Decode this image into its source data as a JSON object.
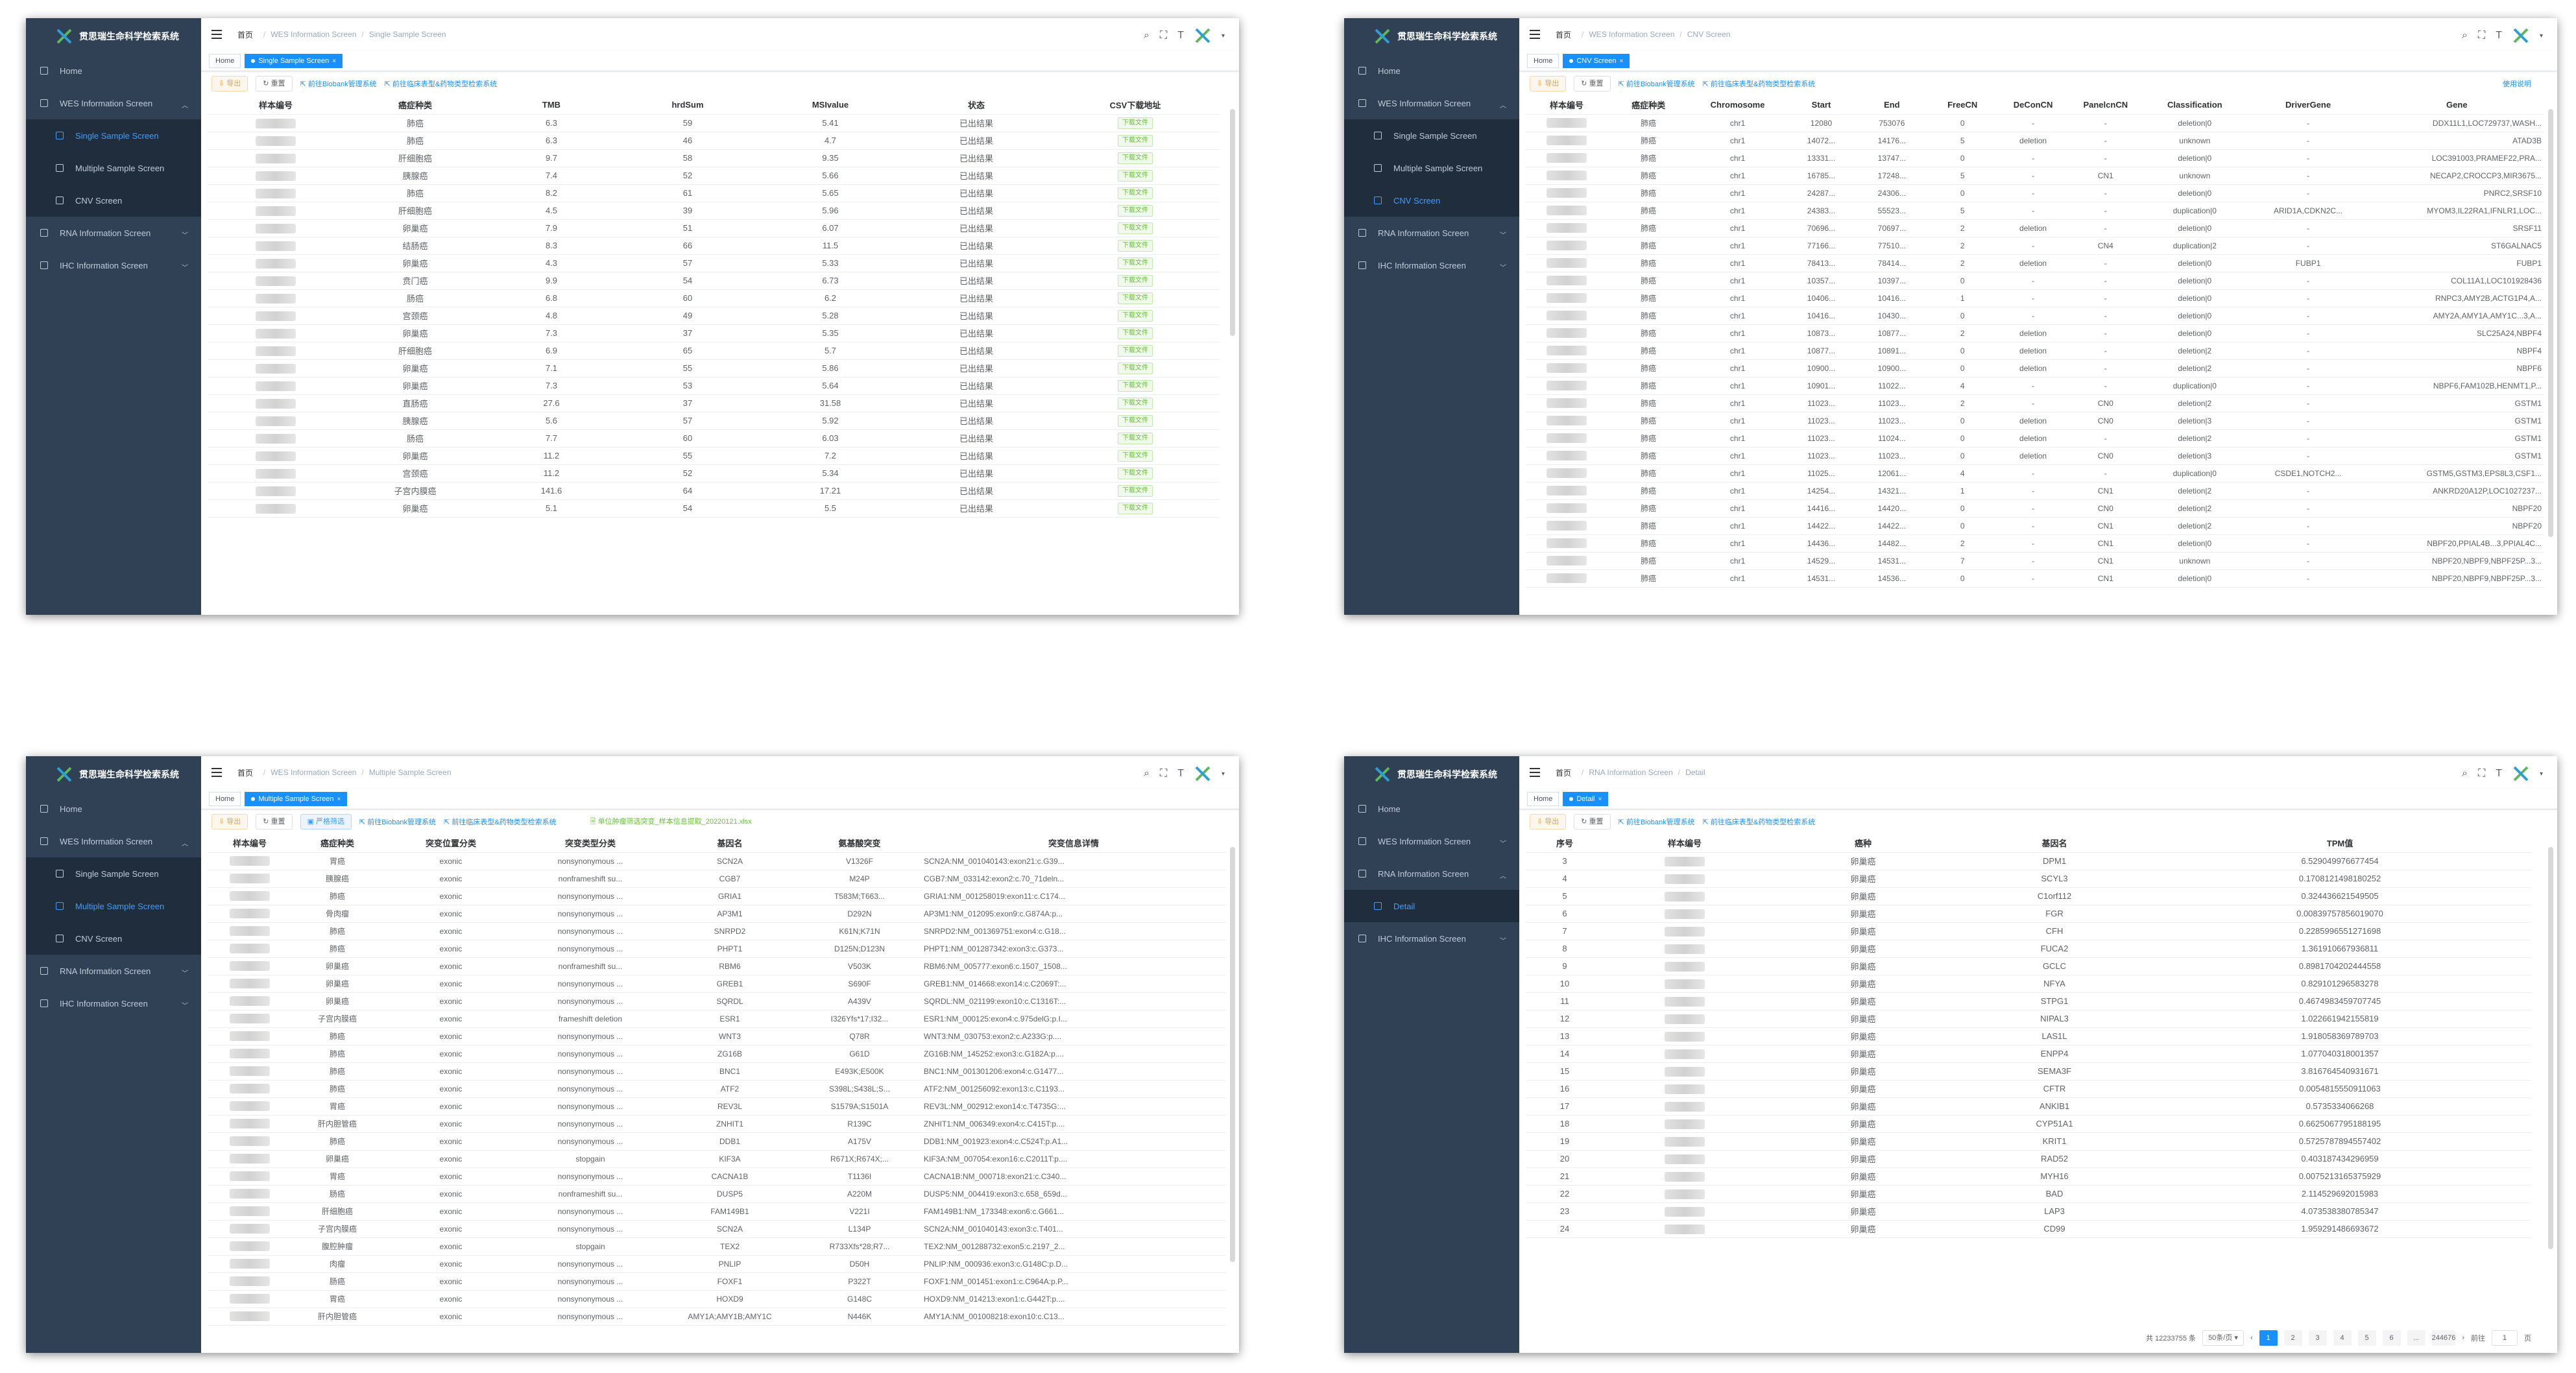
{
  "app_title": "贯思瑞生命科学检索系统",
  "menu": {
    "home": "Home",
    "wes": "WES Information Screen",
    "single": "Single Sample Screen",
    "multiple": "Multiple Sample Screen",
    "cnv": "CNV Screen",
    "rna": "RNA Information Screen",
    "detail": "Detail",
    "ihc": "IHC Information Screen"
  },
  "home_bc": "首页",
  "home_tag": "Home",
  "actions": {
    "export": "导出",
    "reset": "重置",
    "filter": "严格筛选",
    "biobank": "前往Biobank管理系统",
    "clinical": "前往临床表型&药物类型检索系统",
    "info": "使用说明",
    "xlsx": "单位肿瘤筛选突变_样本信息提取_20220121.xlsx"
  },
  "colors": {
    "sidebar": "#304156",
    "active": "#409eff",
    "tag": "#1890ff"
  },
  "w1": {
    "bc": [
      "WES Information Screen",
      "Single Sample Screen"
    ],
    "tag": "Single Sample Screen",
    "headers": [
      "样本编号",
      "癌症种类",
      "TMB",
      "hrdSum",
      "MSIvalue",
      "状态",
      "CSV下载地址"
    ],
    "dl": "下载文件",
    "rows": [
      [
        "肺癌",
        "6.3",
        "59",
        "5.41",
        "已出结果"
      ],
      [
        "肺癌",
        "6.3",
        "46",
        "4.7",
        "已出结果"
      ],
      [
        "肝细胞癌",
        "9.7",
        "58",
        "9.35",
        "已出结果"
      ],
      [
        "胰腺癌",
        "7.4",
        "52",
        "5.66",
        "已出结果"
      ],
      [
        "肺癌",
        "8.2",
        "61",
        "5.65",
        "已出结果"
      ],
      [
        "肝细胞癌",
        "4.5",
        "39",
        "5.96",
        "已出结果"
      ],
      [
        "卵巢癌",
        "7.9",
        "51",
        "6.07",
        "已出结果"
      ],
      [
        "结肠癌",
        "8.3",
        "66",
        "11.5",
        "已出结果"
      ],
      [
        "卵巢癌",
        "4.3",
        "57",
        "5.33",
        "已出结果"
      ],
      [
        "贲门癌",
        "9.9",
        "54",
        "6.73",
        "已出结果"
      ],
      [
        "肠癌",
        "6.8",
        "60",
        "6.2",
        "已出结果"
      ],
      [
        "宫颈癌",
        "4.8",
        "49",
        "5.28",
        "已出结果"
      ],
      [
        "卵巢癌",
        "7.3",
        "37",
        "5.35",
        "已出结果"
      ],
      [
        "肝细胞癌",
        "6.9",
        "65",
        "5.7",
        "已出结果"
      ],
      [
        "卵巢癌",
        "7.1",
        "55",
        "5.86",
        "已出结果"
      ],
      [
        "卵巢癌",
        "7.3",
        "53",
        "5.64",
        "已出结果"
      ],
      [
        "直肠癌",
        "27.6",
        "37",
        "31.58",
        "已出结果"
      ],
      [
        "胰腺癌",
        "5.6",
        "57",
        "5.92",
        "已出结果"
      ],
      [
        "肠癌",
        "7.7",
        "60",
        "6.03",
        "已出结果"
      ],
      [
        "卵巢癌",
        "11.2",
        "55",
        "7.2",
        "已出结果"
      ],
      [
        "宫颈癌",
        "11.2",
        "52",
        "5.34",
        "已出结果"
      ],
      [
        "子宫内膜癌",
        "141.6",
        "64",
        "17.21",
        "已出结果"
      ],
      [
        "卵巢癌",
        "5.1",
        "54",
        "5.5",
        "已出结果"
      ]
    ]
  },
  "w2": {
    "bc": [
      "WES Information Screen",
      "CNV Screen"
    ],
    "tag": "CNV Screen",
    "headers": [
      "样本编号",
      "癌症种类",
      "Chromosome",
      "Start",
      "End",
      "FreeCN",
      "DeConCN",
      "PanelcnCN",
      "Classification",
      "DriverGene",
      "Gene"
    ],
    "rows": [
      [
        "肺癌",
        "chr1",
        "12080",
        "753076",
        "0",
        "-",
        "-",
        "deletion|0",
        "-",
        "DDX11L1,LOC729737,WASH..."
      ],
      [
        "肺癌",
        "chr1",
        "14072...",
        "14176...",
        "5",
        "deletion",
        "-",
        "unknown",
        "-",
        "ATAD3B"
      ],
      [
        "肺癌",
        "chr1",
        "13331...",
        "13747...",
        "0",
        "-",
        "-",
        "deletion|0",
        "-",
        "LOC391003,PRAMEF22,PRA..."
      ],
      [
        "肺癌",
        "chr1",
        "16785...",
        "17248...",
        "5",
        "-",
        "CN1",
        "unknown",
        "-",
        "NECAP2,CROCCP3,MIR3675..."
      ],
      [
        "肺癌",
        "chr1",
        "24287...",
        "24306...",
        "0",
        "-",
        "-",
        "deletion|0",
        "-",
        "PNRC2,SRSF10"
      ],
      [
        "肺癌",
        "chr1",
        "24383...",
        "55523...",
        "5",
        "-",
        "-",
        "duplication|0",
        "ARID1A,CDKN2C...",
        "MYOM3,IL22RA1,IFNLR1,LOC..."
      ],
      [
        "肺癌",
        "chr1",
        "70696...",
        "70697...",
        "2",
        "deletion",
        "-",
        "deletion|0",
        "-",
        "SRSF11"
      ],
      [
        "肺癌",
        "chr1",
        "77166...",
        "77510...",
        "2",
        "-",
        "CN4",
        "duplication|2",
        "-",
        "ST6GALNAC5"
      ],
      [
        "肺癌",
        "chr1",
        "78413...",
        "78414...",
        "2",
        "deletion",
        "-",
        "deletion|0",
        "FUBP1",
        "FUBP1"
      ],
      [
        "肺癌",
        "chr1",
        "10357...",
        "10397...",
        "0",
        "-",
        "-",
        "deletion|0",
        "-",
        "COL11A1,LOC101928436"
      ],
      [
        "肺癌",
        "chr1",
        "10406...",
        "10416...",
        "1",
        "-",
        "-",
        "deletion|0",
        "-",
        "RNPC3,AMY2B,ACTG1P4,A..."
      ],
      [
        "肺癌",
        "chr1",
        "10416...",
        "10430...",
        "0",
        "-",
        "-",
        "deletion|0",
        "-",
        "AMY2A,AMY1A,AMY1C...3,A..."
      ],
      [
        "肺癌",
        "chr1",
        "10873...",
        "10877...",
        "2",
        "deletion",
        "-",
        "deletion|0",
        "-",
        "SLC25A24,NBPF4"
      ],
      [
        "肺癌",
        "chr1",
        "10877...",
        "10891...",
        "0",
        "deletion",
        "-",
        "deletion|2",
        "-",
        "NBPF4"
      ],
      [
        "肺癌",
        "chr1",
        "10900...",
        "10900...",
        "0",
        "deletion",
        "-",
        "deletion|2",
        "-",
        "NBPF6"
      ],
      [
        "肺癌",
        "chr1",
        "10901...",
        "11022...",
        "4",
        "-",
        "-",
        "duplication|0",
        "-",
        "NBPF6,FAM102B,HENMT1,P..."
      ],
      [
        "肺癌",
        "chr1",
        "11023...",
        "11023...",
        "2",
        "-",
        "CN0",
        "deletion|2",
        "-",
        "GSTM1"
      ],
      [
        "肺癌",
        "chr1",
        "11023...",
        "11023...",
        "0",
        "deletion",
        "CN0",
        "deletion|3",
        "-",
        "GSTM1"
      ],
      [
        "肺癌",
        "chr1",
        "11023...",
        "11024...",
        "0",
        "deletion",
        "-",
        "deletion|2",
        "-",
        "GSTM1"
      ],
      [
        "肺癌",
        "chr1",
        "11023...",
        "11023...",
        "0",
        "deletion",
        "CN0",
        "deletion|3",
        "-",
        "GSTM1"
      ],
      [
        "肺癌",
        "chr1",
        "11025...",
        "12061...",
        "4",
        "-",
        "-",
        "duplication|0",
        "CSDE1,NOTCH2...",
        "GSTM5,GSTM3,EPS8L3,CSF1..."
      ],
      [
        "肺癌",
        "chr1",
        "14254...",
        "14321...",
        "1",
        "-",
        "CN1",
        "deletion|2",
        "-",
        "ANKRD20A12P,LOC1027237..."
      ],
      [
        "肺癌",
        "chr1",
        "14416...",
        "14420...",
        "0",
        "-",
        "CN0",
        "deletion|2",
        "-",
        "NBPF20"
      ],
      [
        "肺癌",
        "chr1",
        "14422...",
        "14422...",
        "0",
        "-",
        "CN1",
        "deletion|2",
        "-",
        "NBPF20"
      ],
      [
        "肺癌",
        "chr1",
        "14436...",
        "14482...",
        "2",
        "-",
        "CN1",
        "deletion|0",
        "-",
        "NBPF20,PPIAL4B...3,PPIAL4C..."
      ],
      [
        "肺癌",
        "chr1",
        "14529...",
        "14531...",
        "7",
        "-",
        "CN1",
        "unknown",
        "-",
        "NBPF20,NBPF9,NBPF25P...3..."
      ],
      [
        "肺癌",
        "chr1",
        "14531...",
        "14536...",
        "0",
        "-",
        "CN1",
        "deletion|0",
        "-",
        "NBPF20,NBPF9,NBPF25P...3..."
      ]
    ]
  },
  "w3": {
    "bc": [
      "WES Information Screen",
      "Multiple Sample Screen"
    ],
    "tag": "Multiple Sample Screen",
    "headers": [
      "样本编号",
      "癌症种类",
      "突变位置分类",
      "突变类型分类",
      "基因名",
      "氨基酸突变",
      "突变信息详情"
    ],
    "rows": [
      [
        "胃癌",
        "exonic",
        "nonsynonymous ...",
        "SCN2A",
        "V1326F",
        "SCN2A:NM_001040143:exon21:c.G39..."
      ],
      [
        "胰腺癌",
        "exonic",
        "nonframeshift su...",
        "CGB7",
        "M24P",
        "CGB7:NM_033142:exon2:c.70_71deln..."
      ],
      [
        "肺癌",
        "exonic",
        "nonsynonymous ...",
        "GRIA1",
        "T583M;T663...",
        "GRIA1:NM_001258019:exon11:c.C174..."
      ],
      [
        "骨肉瘤",
        "exonic",
        "nonsynonymous ...",
        "AP3M1",
        "D292N",
        "AP3M1:NM_012095:exon9:c.G874A:p..."
      ],
      [
        "肺癌",
        "exonic",
        "nonsynonymous ...",
        "SNRPD2",
        "K61N;K71N",
        "SNRPD2:NM_001369751:exon4:c.G18..."
      ],
      [
        "肺癌",
        "exonic",
        "nonsynonymous ...",
        "PHPT1",
        "D125N;D123N",
        "PHPT1:NM_001287342:exon3:c.G373..."
      ],
      [
        "卵巢癌",
        "exonic",
        "nonframeshift su...",
        "RBM6",
        "V503K",
        "RBM6:NM_005777:exon6:c.1507_1508..."
      ],
      [
        "卵巢癌",
        "exonic",
        "nonsynonymous ...",
        "GREB1",
        "S690F",
        "GREB1:NM_014668:exon14:c.C2069T:..."
      ],
      [
        "卵巢癌",
        "exonic",
        "nonsynonymous ...",
        "SQRDL",
        "A439V",
        "SQRDL:NM_021199:exon10:c.C1316T:..."
      ],
      [
        "子宫内膜癌",
        "exonic",
        "frameshift deletion",
        "ESR1",
        "I326Yfs*17;I32...",
        "ESR1:NM_000125:exon4:c.975delG:p.I..."
      ],
      [
        "肺癌",
        "exonic",
        "nonsynonymous ...",
        "WNT3",
        "Q78R",
        "WNT3:NM_030753:exon2:c.A233G:p...."
      ],
      [
        "肺癌",
        "exonic",
        "nonsynonymous ...",
        "ZG16B",
        "G61D",
        "ZG16B:NM_145252:exon3:c.G182A:p...."
      ],
      [
        "肺癌",
        "exonic",
        "nonsynonymous ...",
        "BNC1",
        "E493K;E500K",
        "BNC1:NM_001301206:exon4:c.G1477..."
      ],
      [
        "肺癌",
        "exonic",
        "nonsynonymous ...",
        "ATF2",
        "S398L;S438L;S...",
        "ATF2:NM_001256092:exon13:c.C1193..."
      ],
      [
        "胃癌",
        "exonic",
        "nonsynonymous ...",
        "REV3L",
        "S1579A;S1501A",
        "REV3L:NM_002912:exon14:c.T4735G:..."
      ],
      [
        "肝内胆管癌",
        "exonic",
        "nonsynonymous ...",
        "ZNHIT1",
        "R139C",
        "ZNHIT1:NM_006349:exon4:c.C415T:p...."
      ],
      [
        "肺癌",
        "exonic",
        "nonsynonymous ...",
        "DDB1",
        "A175V",
        "DDB1:NM_001923:exon4:c.C524T:p.A1..."
      ],
      [
        "卵巢癌",
        "exonic",
        "stopgain",
        "KIF3A",
        "R671X;R674X;...",
        "KIF3A:NM_007054:exon16:c.C2011T:p...."
      ],
      [
        "胃癌",
        "exonic",
        "nonsynonymous ...",
        "CACNA1B",
        "T1136I",
        "CACNA1B:NM_000718:exon21:c.C340..."
      ],
      [
        "肠癌",
        "exonic",
        "nonframeshift su...",
        "DUSP5",
        "A220M",
        "DUSP5:NM_004419:exon3:c.658_659d..."
      ],
      [
        "肝细胞癌",
        "exonic",
        "nonsynonymous ...",
        "FAM149B1",
        "V221I",
        "FAM149B1:NM_173348:exon6:c.G661..."
      ],
      [
        "子宫内膜癌",
        "exonic",
        "nonsynonymous ...",
        "SCN2A",
        "L134P",
        "SCN2A:NM_001040143:exon3:c.T401..."
      ],
      [
        "腹腔肿瘤",
        "exonic",
        "stopgain",
        "TEX2",
        "R733Xfs*28;R7...",
        "TEX2:NM_001288732:exon5:c.2197_2..."
      ],
      [
        "肉瘤",
        "exonic",
        "nonsynonymous ...",
        "PNLIP",
        "D50H",
        "PNLIP:NM_000936:exon3:c.G148C:p.D..."
      ],
      [
        "肠癌",
        "exonic",
        "nonsynonymous ...",
        "FOXF1",
        "P322T",
        "FOXF1:NM_001451:exon1:c.C964A:p.P..."
      ],
      [
        "胃癌",
        "exonic",
        "nonsynonymous ...",
        "HOXD9",
        "G148C",
        "HOXD9:NM_014213:exon1:c.G442T:p...."
      ],
      [
        "肝内胆管癌",
        "exonic",
        "nonsynonymous ...",
        "AMY1A;AMY1B;AMY1C",
        "N446K",
        "AMY1A:NM_001008218:exon10:c.C13..."
      ]
    ]
  },
  "w4": {
    "bc": [
      "RNA Information Screen",
      "Detail"
    ],
    "tag": "Detail",
    "headers": [
      "序号",
      "样本编号",
      "癌种",
      "基因名",
      "TPM值"
    ],
    "rows": [
      [
        "3",
        "卵巢癌",
        "DPM1",
        "6.529049976677454"
      ],
      [
        "4",
        "卵巢癌",
        "SCYL3",
        "0.1708121498180252"
      ],
      [
        "5",
        "卵巢癌",
        "C1orf112",
        "0.324436621549505"
      ],
      [
        "6",
        "卵巢癌",
        "FGR",
        "0.00839757856019070"
      ],
      [
        "7",
        "卵巢癌",
        "CFH",
        "0.2285996551271698"
      ],
      [
        "8",
        "卵巢癌",
        "FUCA2",
        "1.361910667936811"
      ],
      [
        "9",
        "卵巢癌",
        "GCLC",
        "0.8981704202444558"
      ],
      [
        "10",
        "卵巢癌",
        "NFYA",
        "0.829101296583278"
      ],
      [
        "11",
        "卵巢癌",
        "STPG1",
        "0.4674983459707745"
      ],
      [
        "12",
        "卵巢癌",
        "NIPAL3",
        "1.022661942155819"
      ],
      [
        "13",
        "卵巢癌",
        "LAS1L",
        "1.918058369789703"
      ],
      [
        "14",
        "卵巢癌",
        "ENPP4",
        "1.077040318001357"
      ],
      [
        "15",
        "卵巢癌",
        "SEMA3F",
        "3.816764540931671"
      ],
      [
        "16",
        "卵巢癌",
        "CFTR",
        "0.0054815550911063"
      ],
      [
        "17",
        "卵巢癌",
        "ANKIB1",
        "0.5735334066268"
      ],
      [
        "18",
        "卵巢癌",
        "CYP51A1",
        "0.6625067795188195"
      ],
      [
        "19",
        "卵巢癌",
        "KRIT1",
        "0.5725787894557402"
      ],
      [
        "20",
        "卵巢癌",
        "RAD52",
        "0.403187434296959"
      ],
      [
        "21",
        "卵巢癌",
        "MYH16",
        "0.0075213165375929"
      ],
      [
        "22",
        "卵巢癌",
        "BAD",
        "2.114529692015983"
      ],
      [
        "23",
        "卵巢癌",
        "LAP3",
        "4.073538380785347"
      ],
      [
        "24",
        "卵巢癌",
        "CD99",
        "1.959291486693672"
      ]
    ],
    "total": "共 12233755 条",
    "pagesize": "50条/页",
    "pages": [
      "1",
      "2",
      "3",
      "4",
      "5",
      "6",
      "...",
      "244676"
    ],
    "goto": "前往",
    "goto_val": "1",
    "goto_unit": "页"
  }
}
